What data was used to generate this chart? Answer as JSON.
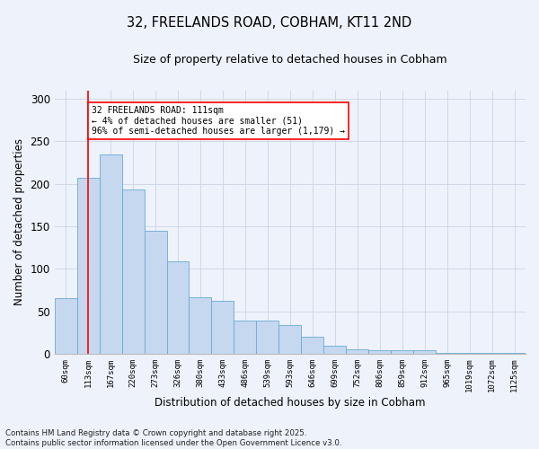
{
  "title_line1": "32, FREELANDS ROAD, COBHAM, KT11 2ND",
  "title_line2": "Size of property relative to detached houses in Cobham",
  "xlabel": "Distribution of detached houses by size in Cobham",
  "ylabel": "Number of detached properties",
  "footer": "Contains HM Land Registry data © Crown copyright and database right 2025.\nContains public sector information licensed under the Open Government Licence v3.0.",
  "categories": [
    "60sqm",
    "113sqm",
    "167sqm",
    "220sqm",
    "273sqm",
    "326sqm",
    "380sqm",
    "433sqm",
    "486sqm",
    "539sqm",
    "593sqm",
    "646sqm",
    "699sqm",
    "752sqm",
    "806sqm",
    "859sqm",
    "912sqm",
    "965sqm",
    "1019sqm",
    "1072sqm",
    "1125sqm"
  ],
  "heights": [
    65,
    207,
    235,
    193,
    145,
    109,
    67,
    62,
    39,
    39,
    34,
    20,
    9,
    5,
    4,
    4,
    4,
    1,
    1,
    1,
    1
  ],
  "bar_color": "#c5d8f0",
  "bar_edge_color": "#6aaad4",
  "grid_color": "#d0d8e8",
  "annotation_text": "32 FREELANDS ROAD: 111sqm\n← 4% of detached houses are smaller (51)\n96% of semi-detached houses are larger (1,179) →",
  "annotation_box_color": "white",
  "annotation_box_edge": "red",
  "vline_color": "red",
  "vline_x_index": 1,
  "ylim": [
    0,
    310
  ],
  "background_color": "#eef2fa"
}
